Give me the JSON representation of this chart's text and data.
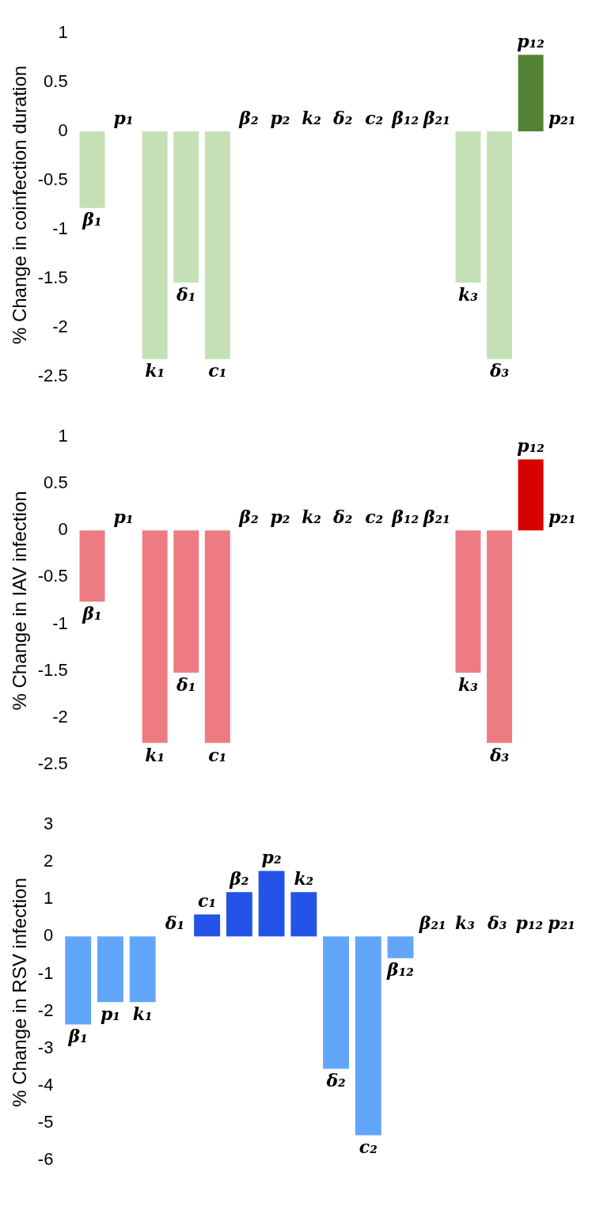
{
  "chart_data": [
    {
      "type": "bar",
      "ylabel": "% Change in coinfection duration",
      "categories": [
        "β₁",
        "p₁",
        "k₁",
        "δ₁",
        "c₁",
        "β₂",
        "p₂",
        "k₂",
        "δ₂",
        "c₂",
        "β₁₂",
        "β₂₁",
        "k₃",
        "δ₃",
        "p₁₂",
        "p₂₁"
      ],
      "values": [
        -0.78,
        0,
        -2.32,
        -1.54,
        -2.32,
        0,
        0,
        0,
        0,
        0,
        0,
        0,
        -1.54,
        -2.32,
        0.78,
        0
      ],
      "colors": [
        "#c5e0b4",
        "#c5e0b4",
        "#c5e0b4",
        "#c5e0b4",
        "#c5e0b4",
        "#c5e0b4",
        "#c5e0b4",
        "#c5e0b4",
        "#c5e0b4",
        "#c5e0b4",
        "#c5e0b4",
        "#c5e0b4",
        "#c5e0b4",
        "#c5e0b4",
        "#548235",
        "#548235"
      ],
      "ylim": [
        -2.5,
        1
      ],
      "yticks": [
        -2.5,
        -2,
        -1.5,
        -1,
        -0.5,
        0,
        0.5,
        1
      ]
    },
    {
      "type": "bar",
      "ylabel": "% Change in IAV infection",
      "categories": [
        "β₁",
        "p₁",
        "k₁",
        "δ₁",
        "c₁",
        "β₂",
        "p₂",
        "k₂",
        "δ₂",
        "c₂",
        "β₁₂",
        "β₂₁",
        "k₃",
        "δ₃",
        "p₁₂",
        "p₂₁"
      ],
      "values": [
        -0.76,
        0,
        -2.27,
        -1.52,
        -2.27,
        0,
        0,
        0,
        0,
        0,
        0,
        0,
        -1.52,
        -2.27,
        0.76,
        0
      ],
      "colors": [
        "#ee7b82",
        "#ee7b82",
        "#ee7b82",
        "#ee7b82",
        "#ee7b82",
        "#ee7b82",
        "#ee7b82",
        "#ee7b82",
        "#ee7b82",
        "#ee7b82",
        "#ee7b82",
        "#ee7b82",
        "#ee7b82",
        "#ee7b82",
        "#d90000",
        "#d90000"
      ],
      "ylim": [
        -2.5,
        1
      ],
      "yticks": [
        -2.5,
        -2,
        -1.5,
        -1,
        -0.5,
        0,
        0.5,
        1
      ]
    },
    {
      "type": "bar",
      "ylabel": "% Change in RSV infection",
      "categories": [
        "β₁",
        "p₁",
        "k₁",
        "δ₁",
        "c₁",
        "β₂",
        "p₂",
        "k₂",
        "δ₂",
        "c₂",
        "β₁₂",
        "β₂₁",
        "k₃",
        "δ₃",
        "p₁₂",
        "p₂₁"
      ],
      "values": [
        -2.36,
        -1.76,
        -1.76,
        0,
        0.59,
        1.19,
        1.76,
        1.19,
        -3.55,
        -5.33,
        -0.58,
        0,
        0,
        0,
        0,
        0
      ],
      "colors": [
        "#62a6fa",
        "#62a6fa",
        "#62a6fa",
        "#2553e8",
        "#2553e8",
        "#2553e8",
        "#2553e8",
        "#2553e8",
        "#62a6fa",
        "#62a6fa",
        "#62a6fa",
        "#62a6fa",
        "#62a6fa",
        "#62a6fa",
        "#62a6fa",
        "#62a6fa"
      ],
      "ylim": [
        -6,
        3
      ],
      "yticks": [
        -6,
        -5,
        -4,
        -3,
        -2,
        -1,
        0,
        1,
        2,
        3
      ]
    }
  ]
}
